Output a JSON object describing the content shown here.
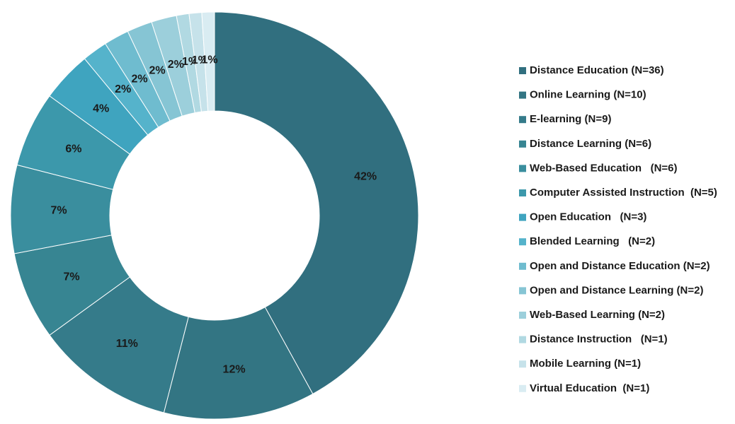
{
  "chart_data": {
    "type": "donut",
    "categories": [
      "Distance Education (N=36)",
      "Online Learning (N=10)",
      "E-learning (N=9)",
      "Distance Learning (N=6)",
      "Web-Based Education   (N=6)",
      "Computer Assisted Instruction  (N=5)",
      "Open Education   (N=3)",
      "Blended Learning   (N=2)",
      "Open and Distance Education (N=2)",
      "Open and Distance Learning (N=2)",
      "Web-Based Learning (N=2)",
      "Distance Instruction   (N=1)",
      "Mobile Learning (N=1)",
      "Virtual Education  (N=1)"
    ],
    "values": [
      42,
      12,
      11,
      7,
      7,
      6,
      4,
      2,
      2,
      2,
      2,
      1,
      1,
      1
    ],
    "value_labels": [
      "42%",
      "12%",
      "11%",
      "7%",
      "7%",
      "6%",
      "4%",
      "2%",
      "2%",
      "2%",
      "2%",
      "1%",
      "1%",
      "1%"
    ],
    "colors": [
      "#316f7f",
      "#337583",
      "#357b8a",
      "#378592",
      "#3a8e9e",
      "#3c98ab",
      "#3fa4bf",
      "#55b3cb",
      "#6fbccf",
      "#86c5d4",
      "#9ccfdb",
      "#b1d9e2",
      "#c6e2ea",
      "#d9ecf2"
    ],
    "legend": "right"
  }
}
